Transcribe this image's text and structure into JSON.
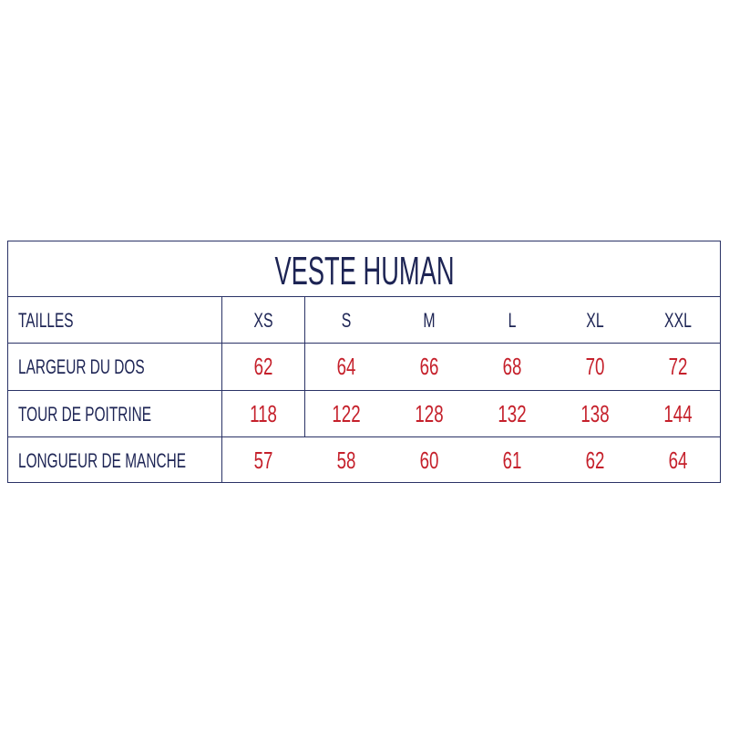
{
  "title": "VESTE HUMAN",
  "header_label": "TAILLES",
  "sizes": [
    "XS",
    "S",
    "M",
    "L",
    "XL",
    "XXL"
  ],
  "rows": [
    {
      "label": "LARGEUR DU DOS",
      "values": [
        "62",
        "64",
        "66",
        "68",
        "70",
        "72"
      ]
    },
    {
      "label": "TOUR DE POITRINE",
      "values": [
        "118",
        "122",
        "128",
        "132",
        "138",
        "144"
      ]
    },
    {
      "label": "LONGUEUR DE MANCHE",
      "values": [
        "57",
        "58",
        "60",
        "61",
        "62",
        "64"
      ]
    }
  ],
  "colors": {
    "text": "#1d2454",
    "values": "#c5202b",
    "border": "#2a3266"
  }
}
